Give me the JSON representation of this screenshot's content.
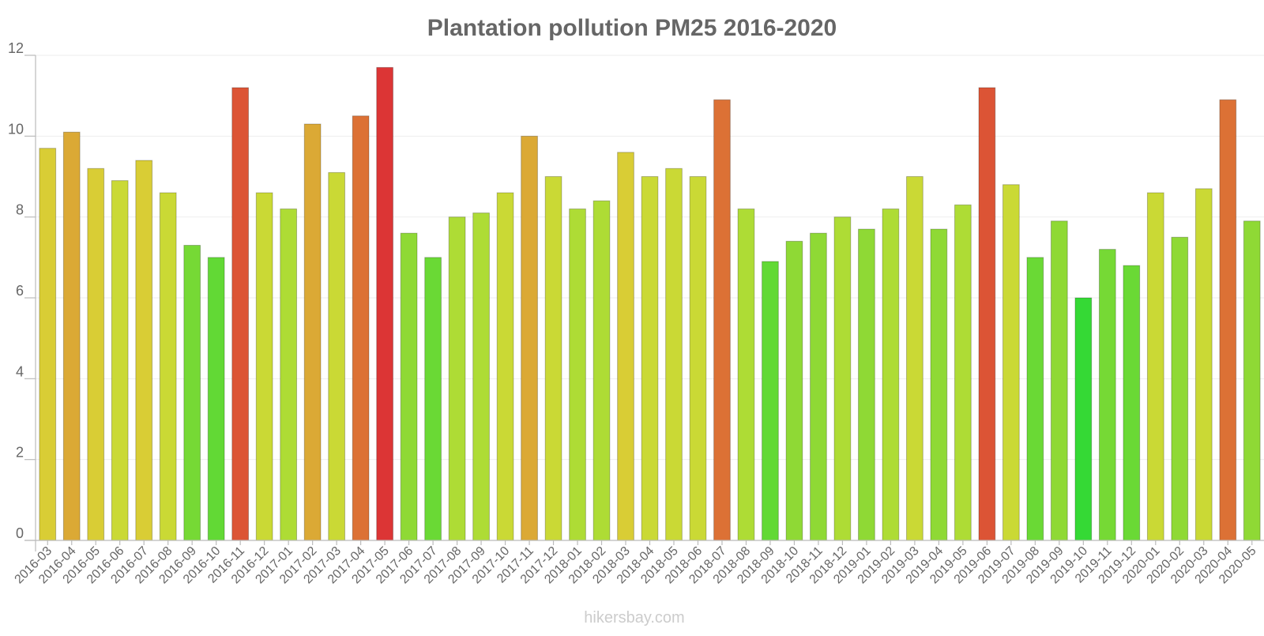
{
  "chart_data": {
    "type": "bar",
    "title": "Plantation pollution PM25 2016-2020",
    "xlabel": "",
    "ylabel": "",
    "ylim": [
      0,
      12
    ],
    "yticks": [
      0,
      2,
      4,
      6,
      8,
      10,
      12
    ],
    "grid": "horizontal",
    "categories": [
      "2016-03",
      "2016-04",
      "2016-05",
      "2016-06",
      "2016-07",
      "2016-08",
      "2016-09",
      "2016-10",
      "2016-11",
      "2016-12",
      "2017-01",
      "2017-02",
      "2017-03",
      "2017-04",
      "2017-05",
      "2017-06",
      "2017-07",
      "2017-08",
      "2017-09",
      "2017-10",
      "2017-11",
      "2017-12",
      "2018-01",
      "2018-02",
      "2018-03",
      "2018-04",
      "2018-05",
      "2018-06",
      "2018-07",
      "2018-08",
      "2018-09",
      "2018-10",
      "2018-11",
      "2018-12",
      "2019-01",
      "2019-02",
      "2019-03",
      "2019-04",
      "2019-05",
      "2019-06",
      "2019-07",
      "2019-08",
      "2019-09",
      "2019-10",
      "2019-11",
      "2019-12",
      "2020-01",
      "2020-02",
      "2020-03",
      "2020-04",
      "2020-05"
    ],
    "values": [
      9.7,
      10.1,
      9.2,
      8.9,
      9.4,
      8.6,
      7.3,
      7.0,
      11.2,
      8.6,
      8.2,
      10.3,
      9.1,
      10.5,
      11.7,
      7.6,
      7.0,
      8.0,
      8.1,
      8.6,
      10.0,
      9.0,
      8.2,
      8.4,
      9.6,
      9.0,
      9.2,
      9.0,
      10.9,
      8.2,
      6.9,
      7.4,
      7.6,
      8.0,
      7.7,
      8.2,
      9.0,
      7.7,
      8.3,
      11.2,
      8.8,
      7.0,
      7.9,
      6.0,
      7.2,
      6.8,
      8.6,
      7.5,
      8.7,
      10.9,
      7.9
    ],
    "colors": [
      "#d9cd35",
      "#dba935",
      "#d9cd35",
      "#cad935",
      "#d9cd35",
      "#cad935",
      "#76d935",
      "#62d935",
      "#dc5435",
      "#cad935",
      "#aedc35",
      "#dba935",
      "#cad935",
      "#dc7135",
      "#dc3535",
      "#8fd935",
      "#6ad935",
      "#aedc35",
      "#aedc35",
      "#cad935",
      "#dba935",
      "#cad935",
      "#aedc35",
      "#aedc35",
      "#d9cd35",
      "#cad935",
      "#cad935",
      "#cad935",
      "#dc7135",
      "#aedc35",
      "#62d935",
      "#8fd935",
      "#8fd935",
      "#aedc35",
      "#8fd935",
      "#aedc35",
      "#cad935",
      "#8fd935",
      "#aedc35",
      "#dc5435",
      "#cad935",
      "#6ad935",
      "#8fd935",
      "#35d935",
      "#76d935",
      "#6ad935",
      "#cad935",
      "#8fd935",
      "#cad935",
      "#dc7135",
      "#8fd935"
    ]
  },
  "watermark": "hikersbay.com"
}
